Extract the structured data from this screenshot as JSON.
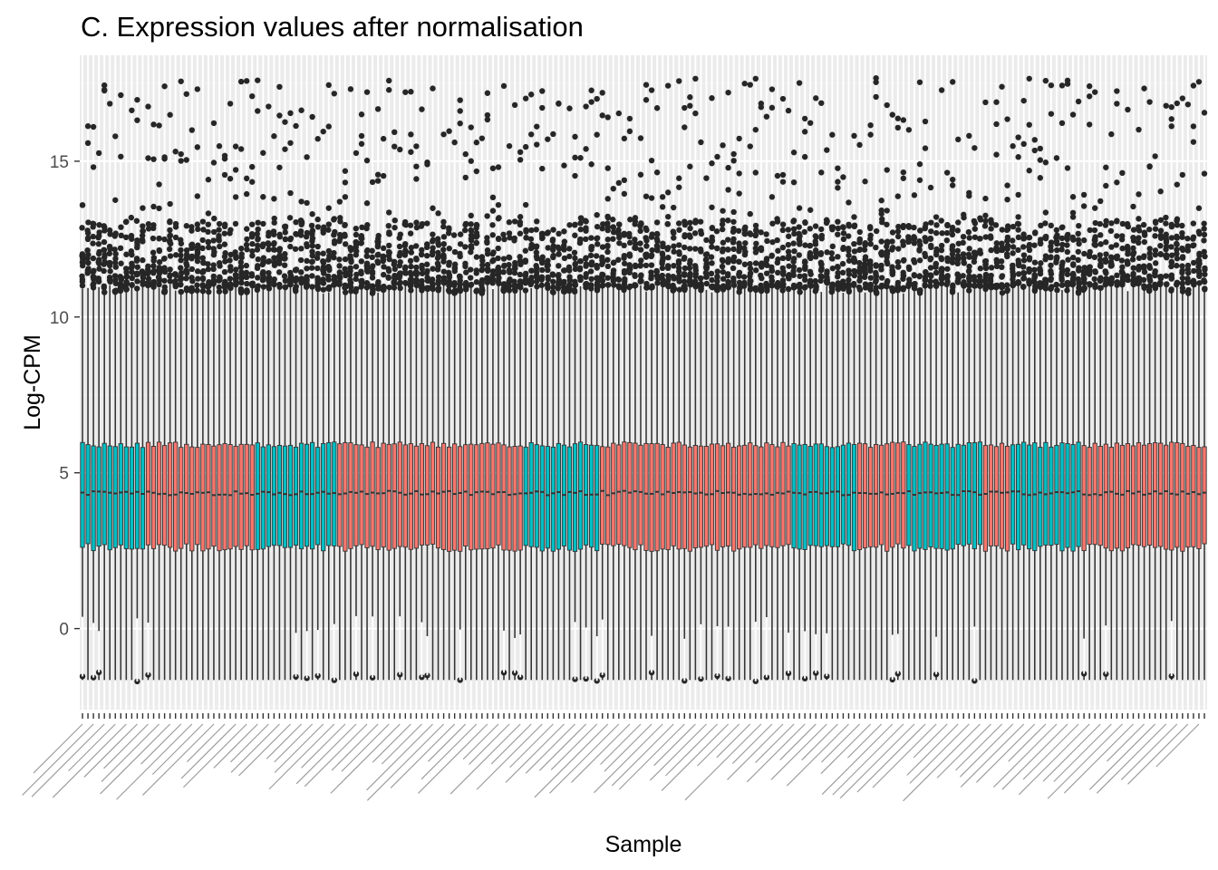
{
  "colors": {
    "panel_background": "#ebebeb",
    "grid_major": "#ffffff",
    "grid_minor": "#f2f2f2",
    "box_outline": "#333333",
    "outlier": "#262626",
    "group_teal": "#00bfc4",
    "group_salmon": "#f8766d",
    "tick_label": "#4d4d4d"
  },
  "chart_data": {
    "type": "boxplot",
    "title": "C. Expression values after normalisation",
    "xlabel": "Sample",
    "ylabel": "Log-CPM",
    "ylim": [
      -2.6,
      18.4
    ],
    "yticks": [
      0,
      5,
      10,
      15
    ],
    "legend": "none",
    "grid": true,
    "n_samples": 206,
    "x_tick_labels_legible": false,
    "sample_groups": [
      {
        "fill": "teal",
        "count": 12
      },
      {
        "fill": "salmon",
        "count": 20
      },
      {
        "fill": "teal",
        "count": 15
      },
      {
        "fill": "salmon",
        "count": 34
      },
      {
        "fill": "teal",
        "count": 14
      },
      {
        "fill": "salmon",
        "count": 35
      },
      {
        "fill": "teal",
        "count": 12
      },
      {
        "fill": "salmon",
        "count": 9
      },
      {
        "fill": "teal",
        "count": 14
      },
      {
        "fill": "salmon",
        "count": 5
      },
      {
        "fill": "teal",
        "count": 13
      },
      {
        "fill": "salmon",
        "count": 23
      }
    ],
    "typical_box": {
      "lower_whisker": -1.65,
      "q1": 2.6,
      "median": 4.35,
      "q3": 5.9,
      "upper_whisker": 10.9
    },
    "outliers_high_range": [
      10.0,
      17.7
    ],
    "outliers_low_range": [
      -1.7,
      0.4
    ]
  }
}
